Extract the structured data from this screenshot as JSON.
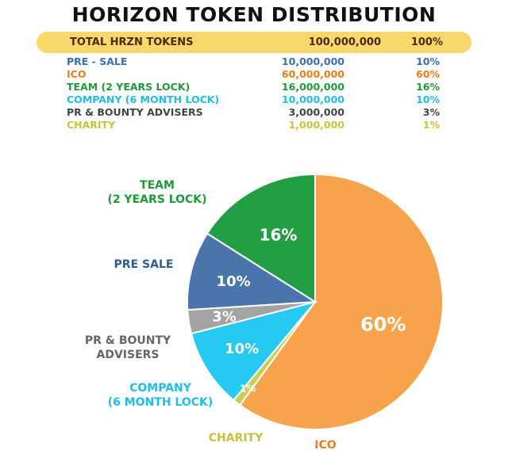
{
  "title": "HORIZON TOKEN DISTRIBUTION",
  "total": {
    "label": "TOTAL HRZN TOKENS",
    "amount": "100,000,000",
    "percent": "100%"
  },
  "rows": [
    {
      "label": "PRE - SALE",
      "amount": "10,000,000",
      "percent": "10%",
      "color": "#3a6eb0"
    },
    {
      "label": "ICO",
      "amount": "60,000,000",
      "percent": "60%",
      "color": "#f07a1a"
    },
    {
      "label": "TEAM (2 YEARS LOCK)",
      "amount": "16,000,000",
      "percent": "16%",
      "color": "#1f9a3a"
    },
    {
      "label": "COMPANY (6 MONTH LOCK)",
      "amount": "10,000,000",
      "percent": "10%",
      "color": "#1fbde8"
    },
    {
      "label": "PR & BOUNTY ADVISERS",
      "amount": "3,000,000",
      "percent": "3%",
      "color": "#444444"
    },
    {
      "label": "CHARITY",
      "amount": "1,000,000",
      "percent": "1%",
      "color": "#c8c43a"
    }
  ],
  "chart_data": {
    "type": "pie",
    "slices": [
      {
        "key": "ico",
        "value": 60,
        "label_pct": "60%",
        "color": "#f7a34b",
        "label_lines": [
          "ICO"
        ],
        "label_color": "#ef7a1c"
      },
      {
        "key": "charity",
        "value": 1,
        "label_pct": "1%",
        "color": "#cdcc55",
        "label_lines": [
          "CHARITY"
        ],
        "label_color": "#c6c13a"
      },
      {
        "key": "company",
        "value": 10,
        "label_pct": "10%",
        "color": "#27c9f3",
        "label_lines": [
          "COMPANY",
          "(6 MONTH LOCK)"
        ],
        "label_color": "#1fbde8"
      },
      {
        "key": "pr-bounty",
        "value": 3,
        "label_pct": "3%",
        "color": "#a3a3a3",
        "label_lines": [
          "PR & BOUNTY",
          "ADVISERS"
        ],
        "label_color": "#666666"
      },
      {
        "key": "pre-sale",
        "value": 10,
        "label_pct": "10%",
        "color": "#4a75aa",
        "label_lines": [
          "PRE SALE"
        ],
        "label_color": "#2f5b95"
      },
      {
        "key": "team",
        "value": 16,
        "label_pct": "16%",
        "color": "#239e44",
        "label_lines": [
          "TEAM",
          "(2 YEARS LOCK)"
        ],
        "label_color": "#1f9a3a"
      }
    ]
  }
}
